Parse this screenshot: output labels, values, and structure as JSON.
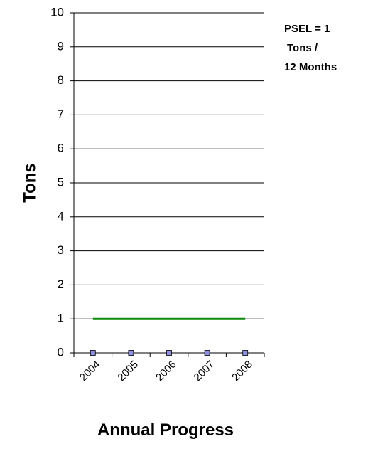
{
  "chart_data": {
    "type": "line",
    "categories": [
      "2004",
      "2005",
      "2006",
      "2007",
      "2008"
    ],
    "series": [
      {
        "values": [
          0,
          0,
          0,
          0,
          0
        ],
        "color": "#8f8fe0",
        "marker": "square"
      },
      {
        "values": [
          1,
          1,
          1,
          1,
          1
        ],
        "color": "#0a8a0a",
        "marker": "none"
      }
    ],
    "xlabel": "Annual Progress",
    "ylabel": "Tons",
    "ylim": [
      0,
      10
    ],
    "yticks": [
      0,
      1,
      2,
      3,
      4,
      5,
      6,
      7,
      8,
      9,
      10
    ],
    "grid": true,
    "annotation": [
      "PSEL = 1",
      "Tons /",
      "12 Months"
    ]
  }
}
